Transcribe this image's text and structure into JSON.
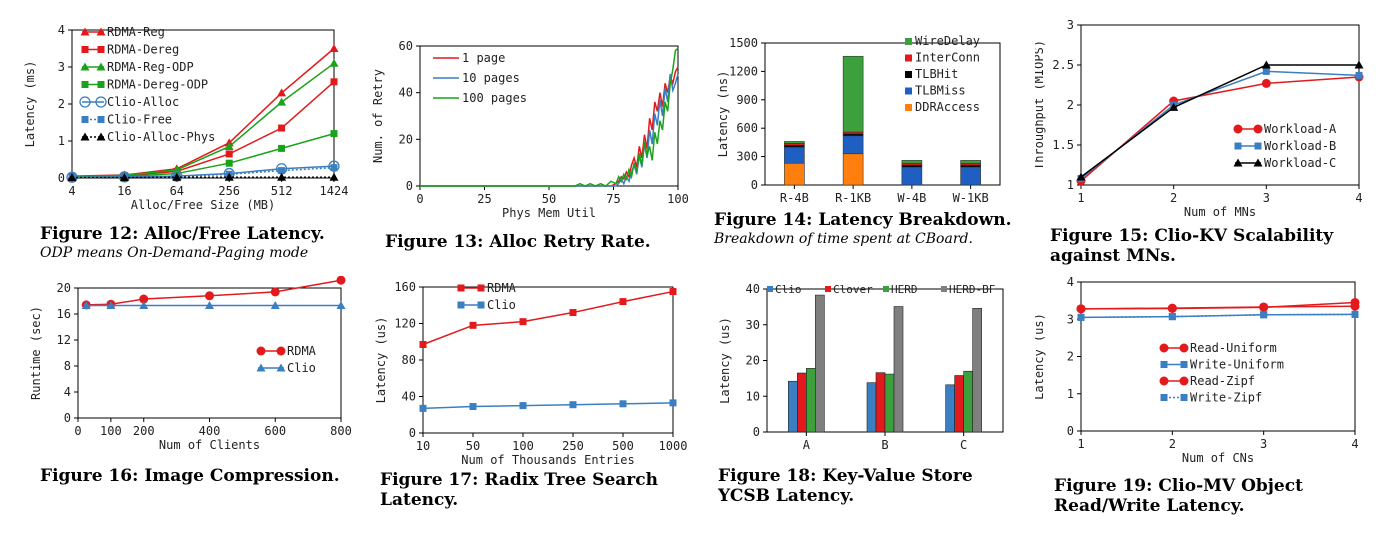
{
  "figures": [
    {
      "id": "fig12",
      "title": "Figure 12: Alloc/Free Latency.",
      "subtitle": "ODP means On-Demand-Paging mode"
    },
    {
      "id": "fig13",
      "title": "Figure 13: Alloc Retry Rate.",
      "subtitle": ""
    },
    {
      "id": "fig14",
      "title": "Figure 14: Latency Breakdown.",
      "subtitle": "Breakdown of time spent at CBoard."
    },
    {
      "id": "fig15",
      "title": "Figure 15: Clio-KV Scalability against MNs.",
      "subtitle": ""
    },
    {
      "id": "fig16",
      "title": "Figure 16: Image Compression.",
      "subtitle": ""
    },
    {
      "id": "fig17",
      "title": "Figure 17: Radix Tree Search Latency.",
      "subtitle": ""
    },
    {
      "id": "fig18",
      "title": "Figure 18: Key-Value Store YCSB Latency.",
      "subtitle": ""
    },
    {
      "id": "fig19",
      "title": "Figure 19: Clio-MV Object Read/Write Latency.",
      "subtitle": ""
    }
  ],
  "chart_data": [
    {
      "id": "fig12",
      "type": "line",
      "xlabel": "Alloc/Free Size (MB)",
      "ylabel": "Latency (ms)",
      "x": [
        "4",
        "16",
        "64",
        "256",
        "512",
        "1424"
      ],
      "ylim": [
        0,
        4
      ],
      "yticks": [
        0,
        1,
        2,
        3,
        4
      ],
      "legend": "top-left",
      "series": [
        {
          "name": "RDMA-Reg",
          "color": "#e31a1c",
          "marker": "triangle",
          "values": [
            0.05,
            0.08,
            0.25,
            0.95,
            2.3,
            3.5
          ]
        },
        {
          "name": "RDMA-Dereg",
          "color": "#e31a1c",
          "marker": "square",
          "values": [
            0.04,
            0.06,
            0.18,
            0.65,
            1.35,
            2.6
          ]
        },
        {
          "name": "RDMA-Reg-ODP",
          "color": "#1aa31a",
          "marker": "triangle",
          "values": [
            0.04,
            0.07,
            0.22,
            0.85,
            2.05,
            3.1
          ]
        },
        {
          "name": "RDMA-Dereg-ODP",
          "color": "#1aa31a",
          "marker": "square",
          "values": [
            0.03,
            0.04,
            0.12,
            0.4,
            0.8,
            1.2
          ]
        },
        {
          "name": "Clio-Alloc",
          "color": "#3a7fc1",
          "marker": "circle-open",
          "values": [
            0.02,
            0.03,
            0.05,
            0.12,
            0.25,
            0.32
          ]
        },
        {
          "name": "Clio-Free",
          "color": "#3a7fc1",
          "marker": "square",
          "dashed": true,
          "values": [
            0.02,
            0.03,
            0.04,
            0.1,
            0.2,
            0.28
          ]
        },
        {
          "name": "Clio-Alloc-Phys",
          "color": "#000000",
          "marker": "triangle",
          "dashed": true,
          "values": [
            0.01,
            0.01,
            0.02,
            0.02,
            0.02,
            0.02
          ]
        }
      ]
    },
    {
      "id": "fig13",
      "type": "line",
      "xlabel": "Phys Mem Util",
      "ylabel": "Num. of Retry",
      "x": [
        0,
        25,
        50,
        60,
        62,
        64,
        66,
        68,
        70,
        72,
        74,
        76,
        77,
        78,
        79,
        80,
        81,
        82,
        83,
        84,
        85,
        86,
        87,
        88,
        89,
        90,
        91,
        92,
        93,
        94,
        95,
        96,
        97,
        98,
        99,
        100
      ],
      "xlim": [
        0,
        100
      ],
      "xticks": [
        0,
        25,
        50,
        75,
        100
      ],
      "ylim": [
        0,
        60
      ],
      "yticks": [
        0,
        20,
        40,
        60
      ],
      "legend": "top-left",
      "series": [
        {
          "name": "1 page",
          "color": "#e31a1c",
          "values": [
            0,
            0,
            0,
            0,
            0,
            0,
            0,
            0,
            0,
            0,
            0,
            1,
            2,
            4,
            3,
            6,
            4,
            9,
            12,
            8,
            17,
            12,
            22,
            16,
            29,
            24,
            36,
            32,
            40,
            34,
            44,
            40,
            47,
            44,
            49,
            51
          ]
        },
        {
          "name": "10 pages",
          "color": "#3a7fc1",
          "values": [
            0,
            0,
            0,
            0,
            0,
            0,
            0,
            0,
            0,
            0,
            0,
            0,
            1,
            3,
            1,
            4,
            2,
            6,
            9,
            5,
            13,
            8,
            18,
            12,
            24,
            18,
            31,
            26,
            37,
            30,
            42,
            36,
            48,
            41,
            44,
            48
          ]
        },
        {
          "name": "100 pages",
          "color": "#1aa31a",
          "values": [
            0,
            0,
            0,
            0,
            1,
            0,
            1,
            0,
            1,
            0,
            2,
            1,
            4,
            2,
            5,
            3,
            7,
            4,
            10,
            6,
            14,
            9,
            19,
            13,
            17,
            11,
            23,
            18,
            28,
            24,
            36,
            32,
            44,
            50,
            58,
            59
          ]
        }
      ]
    },
    {
      "id": "fig14",
      "type": "bar",
      "stacked": true,
      "xlabel": "",
      "ylabel": "Latency (ns)",
      "categories": [
        "R-4B",
        "R-1KB",
        "W-4B",
        "W-1KB"
      ],
      "ylim": [
        0,
        1500
      ],
      "yticks": [
        0,
        300,
        600,
        900,
        1200,
        1500
      ],
      "legend": "top-right",
      "series": [
        {
          "name": "DDRAccess",
          "color": "#ff7f0e",
          "values": [
            230,
            330,
            0,
            0
          ]
        },
        {
          "name": "TLBMiss",
          "color": "#1f5fc1",
          "values": [
            170,
            190,
            190,
            190
          ]
        },
        {
          "name": "TLBHit",
          "color": "#000000",
          "values": [
            20,
            20,
            20,
            20
          ]
        },
        {
          "name": "InterConn",
          "color": "#e31a1c",
          "values": [
            20,
            20,
            20,
            20
          ]
        },
        {
          "name": "WireDelay",
          "color": "#3ca03c",
          "values": [
            20,
            800,
            30,
            30
          ]
        }
      ],
      "legend_order": [
        "WireDelay",
        "InterConn",
        "TLBHit",
        "TLBMiss",
        "DDRAccess"
      ]
    },
    {
      "id": "fig15",
      "type": "line",
      "xlabel": "Num of MNs",
      "ylabel": "Throughput (MIOPS)",
      "x": [
        1,
        2,
        3,
        4
      ],
      "xticks": [
        1,
        2,
        3,
        4
      ],
      "ylim": [
        1,
        3
      ],
      "yticks": [
        1,
        1.5,
        2,
        2.5,
        3
      ],
      "legend": "bottom-right",
      "series": [
        {
          "name": "Workload-A",
          "color": "#e31a1c",
          "marker": "circle",
          "values": [
            1.05,
            2.05,
            2.27,
            2.35
          ]
        },
        {
          "name": "Workload-B",
          "color": "#3a7fc1",
          "marker": "square",
          "values": [
            1.08,
            2.0,
            2.42,
            2.37
          ]
        },
        {
          "name": "Workload-C",
          "color": "#000000",
          "marker": "triangle",
          "values": [
            1.1,
            1.97,
            2.5,
            2.5
          ]
        }
      ]
    },
    {
      "id": "fig16",
      "type": "line",
      "xlabel": "Num of Clients",
      "ylabel": "Runtime (sec)",
      "x": [
        25,
        100,
        200,
        400,
        600,
        800
      ],
      "xlim": [
        0,
        800
      ],
      "xticks": [
        0,
        100,
        200,
        400,
        600,
        800
      ],
      "ylim": [
        0,
        20
      ],
      "yticks": [
        0,
        4,
        8,
        12,
        16,
        20
      ],
      "legend": "middle-right",
      "series": [
        {
          "name": "RDMA",
          "color": "#e31a1c",
          "marker": "circle",
          "values": [
            17.4,
            17.5,
            18.3,
            18.8,
            19.4,
            21.2
          ]
        },
        {
          "name": "Clio",
          "color": "#3a7fc1",
          "marker": "triangle",
          "values": [
            17.3,
            17.3,
            17.3,
            17.3,
            17.3,
            17.3
          ]
        }
      ]
    },
    {
      "id": "fig17",
      "type": "line",
      "xlabel": "Num of Thousands Entries",
      "ylabel": "Latency (us)",
      "x": [
        "10",
        "50",
        "100",
        "250",
        "500",
        "1000"
      ],
      "ylim": [
        0,
        160
      ],
      "yticks": [
        0,
        40,
        80,
        120,
        160
      ],
      "legend": "top-left",
      "series": [
        {
          "name": "RDMA",
          "color": "#e31a1c",
          "marker": "square",
          "values": [
            97,
            118,
            122,
            132,
            144,
            155
          ]
        },
        {
          "name": "Clio",
          "color": "#3a7fc1",
          "marker": "square",
          "values": [
            27,
            29,
            30,
            31,
            32,
            33
          ]
        }
      ]
    },
    {
      "id": "fig18",
      "type": "bar",
      "xlabel": "",
      "ylabel": "Latency (us)",
      "categories": [
        "A",
        "B",
        "C"
      ],
      "ylim": [
        0,
        40
      ],
      "yticks": [
        0,
        10,
        20,
        30,
        40
      ],
      "legend": "top",
      "series": [
        {
          "name": "Clio",
          "color": "#3a7fc1",
          "values": [
            14.2,
            13.8,
            13.2
          ]
        },
        {
          "name": "Clover",
          "color": "#e31a1c",
          "values": [
            16.5,
            16.6,
            15.8
          ]
        },
        {
          "name": "HERD",
          "color": "#3ca03c",
          "values": [
            17.8,
            16.2,
            17.0
          ]
        },
        {
          "name": "HERD-BF",
          "color": "#7f7f7f",
          "values": [
            38.3,
            35.1,
            34.6
          ]
        }
      ]
    },
    {
      "id": "fig19",
      "type": "line",
      "xlabel": "Num of CNs",
      "ylabel": "Latency (us)",
      "x": [
        1,
        2,
        3,
        4
      ],
      "xticks": [
        1,
        2,
        3,
        4
      ],
      "ylim": [
        0,
        4
      ],
      "yticks": [
        0,
        1,
        2,
        3,
        4
      ],
      "legend": "middle",
      "series": [
        {
          "name": "Read-Uniform",
          "color": "#e31a1c",
          "marker": "circle",
          "values": [
            3.28,
            3.29,
            3.32,
            3.45
          ]
        },
        {
          "name": "Write-Uniform",
          "color": "#3a7fc1",
          "marker": "square",
          "values": [
            3.05,
            3.07,
            3.12,
            3.13
          ]
        },
        {
          "name": "Read-Zipf",
          "color": "#e31a1c",
          "marker": "circle",
          "values": [
            3.28,
            3.3,
            3.33,
            3.35
          ]
        },
        {
          "name": "Write-Zipf",
          "color": "#3a7fc1",
          "marker": "square",
          "dashed": true,
          "values": [
            3.05,
            3.07,
            3.12,
            3.13
          ]
        }
      ]
    }
  ]
}
